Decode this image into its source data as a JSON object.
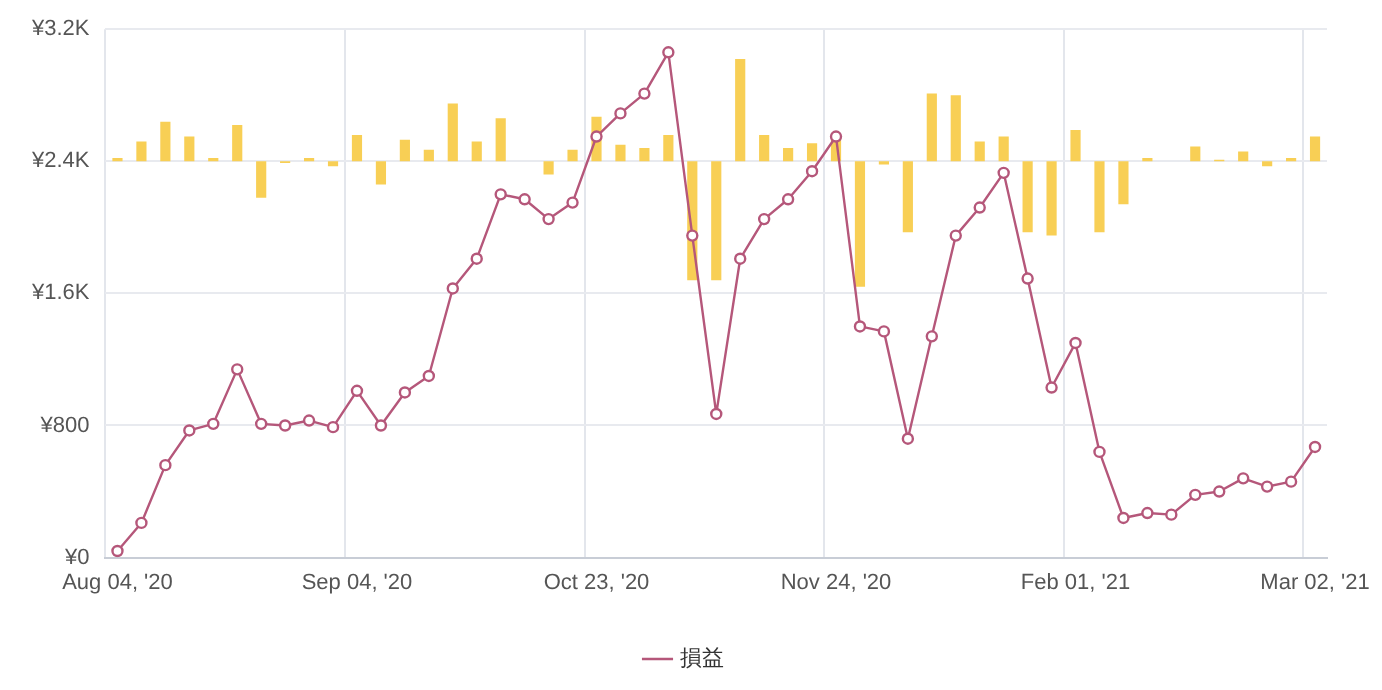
{
  "chart_data": {
    "type": "line",
    "grid": true,
    "legend": "bottom",
    "marker": "circle",
    "categories": [
      "Aug 04, '20",
      null,
      null,
      null,
      null,
      null,
      null,
      null,
      null,
      null,
      "Sep 04, '20",
      null,
      null,
      null,
      null,
      null,
      null,
      null,
      null,
      null,
      "Oct 23, '20",
      null,
      null,
      null,
      null,
      null,
      null,
      null,
      null,
      null,
      "Nov 24, '20",
      null,
      null,
      null,
      null,
      null,
      null,
      null,
      null,
      null,
      "Feb 01, '21",
      null,
      null,
      null,
      null,
      null,
      null,
      null,
      null,
      null,
      "Mar 02, '21"
    ],
    "ylim": [
      0,
      3200
    ],
    "yticks": [
      {
        "value": 0,
        "label": "¥0"
      },
      {
        "value": 800,
        "label": "¥800"
      },
      {
        "value": 1600,
        "label": "¥1.6K"
      },
      {
        "value": 2400,
        "label": "¥2.4K"
      },
      {
        "value": 3200,
        "label": "¥3.2K"
      }
    ],
    "series": [
      {
        "type": "bar",
        "color": "#f8cf55",
        "base": [
          2400,
          2400,
          2400,
          2400,
          2400,
          2400,
          2400,
          2400,
          2400,
          2400,
          2400,
          2400,
          2400,
          2400,
          2400,
          2400,
          2400,
          null,
          2400,
          2400,
          2400,
          2400,
          2400,
          2400,
          2400,
          2400,
          2400,
          2400,
          2400,
          2400,
          2400,
          2400,
          2400,
          2400,
          2400,
          2400,
          2400,
          2400,
          2400,
          2400,
          2400,
          2400,
          2400,
          2400,
          null,
          2400,
          2400,
          2400,
          2400,
          2400,
          2400
        ],
        "values": [
          20,
          120,
          240,
          150,
          20,
          220,
          -220,
          -10,
          20,
          -30,
          160,
          -140,
          130,
          70,
          350,
          120,
          260,
          null,
          -80,
          70,
          270,
          100,
          80,
          160,
          -720,
          -720,
          620,
          160,
          80,
          110,
          150,
          -760,
          -20,
          -430,
          410,
          400,
          120,
          150,
          -430,
          -450,
          190,
          -430,
          -260,
          20,
          null,
          90,
          10,
          60,
          -30,
          20,
          150
        ]
      },
      {
        "name": "損益",
        "color": "#b5577a",
        "values": [
          40,
          210,
          560,
          770,
          810,
          1140,
          810,
          800,
          830,
          790,
          1010,
          800,
          1000,
          1100,
          1630,
          1810,
          2200,
          2170,
          2050,
          2150,
          2550,
          2690,
          2810,
          3060,
          1950,
          870,
          1810,
          2050,
          2170,
          2340,
          2550,
          1400,
          1370,
          720,
          1340,
          1950,
          2120,
          2330,
          1690,
          1030,
          1300,
          640,
          240,
          270,
          260,
          380,
          400,
          480,
          430,
          460,
          670
        ]
      }
    ]
  }
}
